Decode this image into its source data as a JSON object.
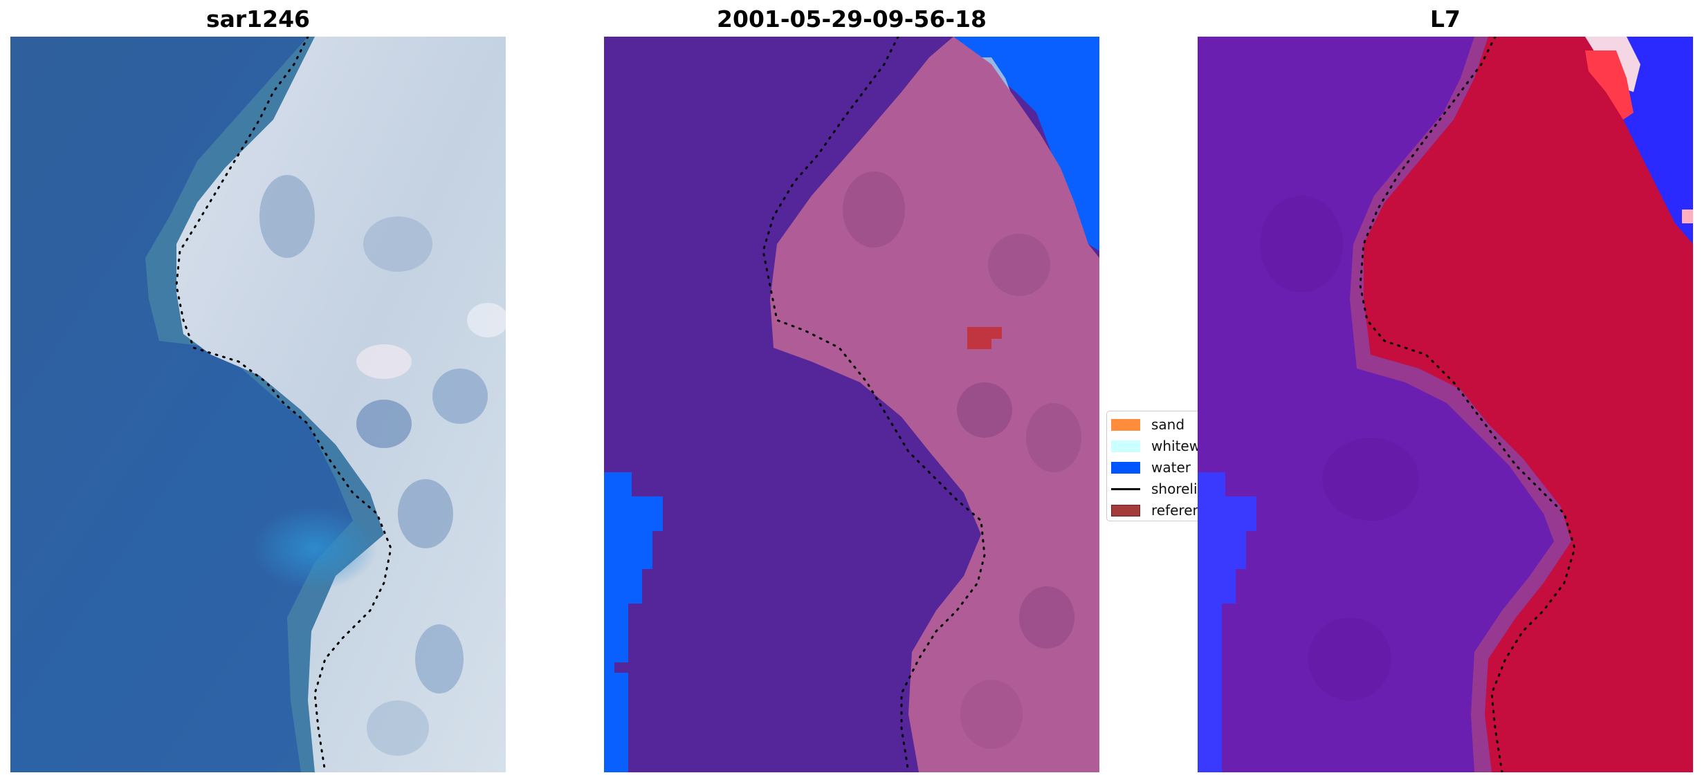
{
  "panels": [
    {
      "title": "sar1246",
      "kind": "rgb-satellite-image"
    },
    {
      "title": "2001-05-29-09-56-18",
      "kind": "classified-image"
    },
    {
      "title": "L7",
      "kind": "water-index-image"
    }
  ],
  "legend": {
    "items": [
      {
        "label": "sand",
        "color": "#ff8c3a",
        "type": "patch"
      },
      {
        "label": "whitewater",
        "color": "#ccffff",
        "type": "patch"
      },
      {
        "label": "water",
        "color": "#0055ff",
        "type": "patch"
      },
      {
        "label": "shoreline",
        "color": "#000000",
        "type": "line"
      },
      {
        "label": "reference",
        "color": "#a33b3b",
        "type": "patch"
      }
    ]
  },
  "colors": {
    "deep_water": "#2e5f9e",
    "land_light": "#cfd8e6",
    "class_water_dark": "#55259a",
    "class_land": "#b05c96",
    "class_water_bright": "#0a60ff",
    "index_water": "#6b1fb0",
    "index_land": "#c50e3d",
    "index_blue": "#2a2aff"
  }
}
